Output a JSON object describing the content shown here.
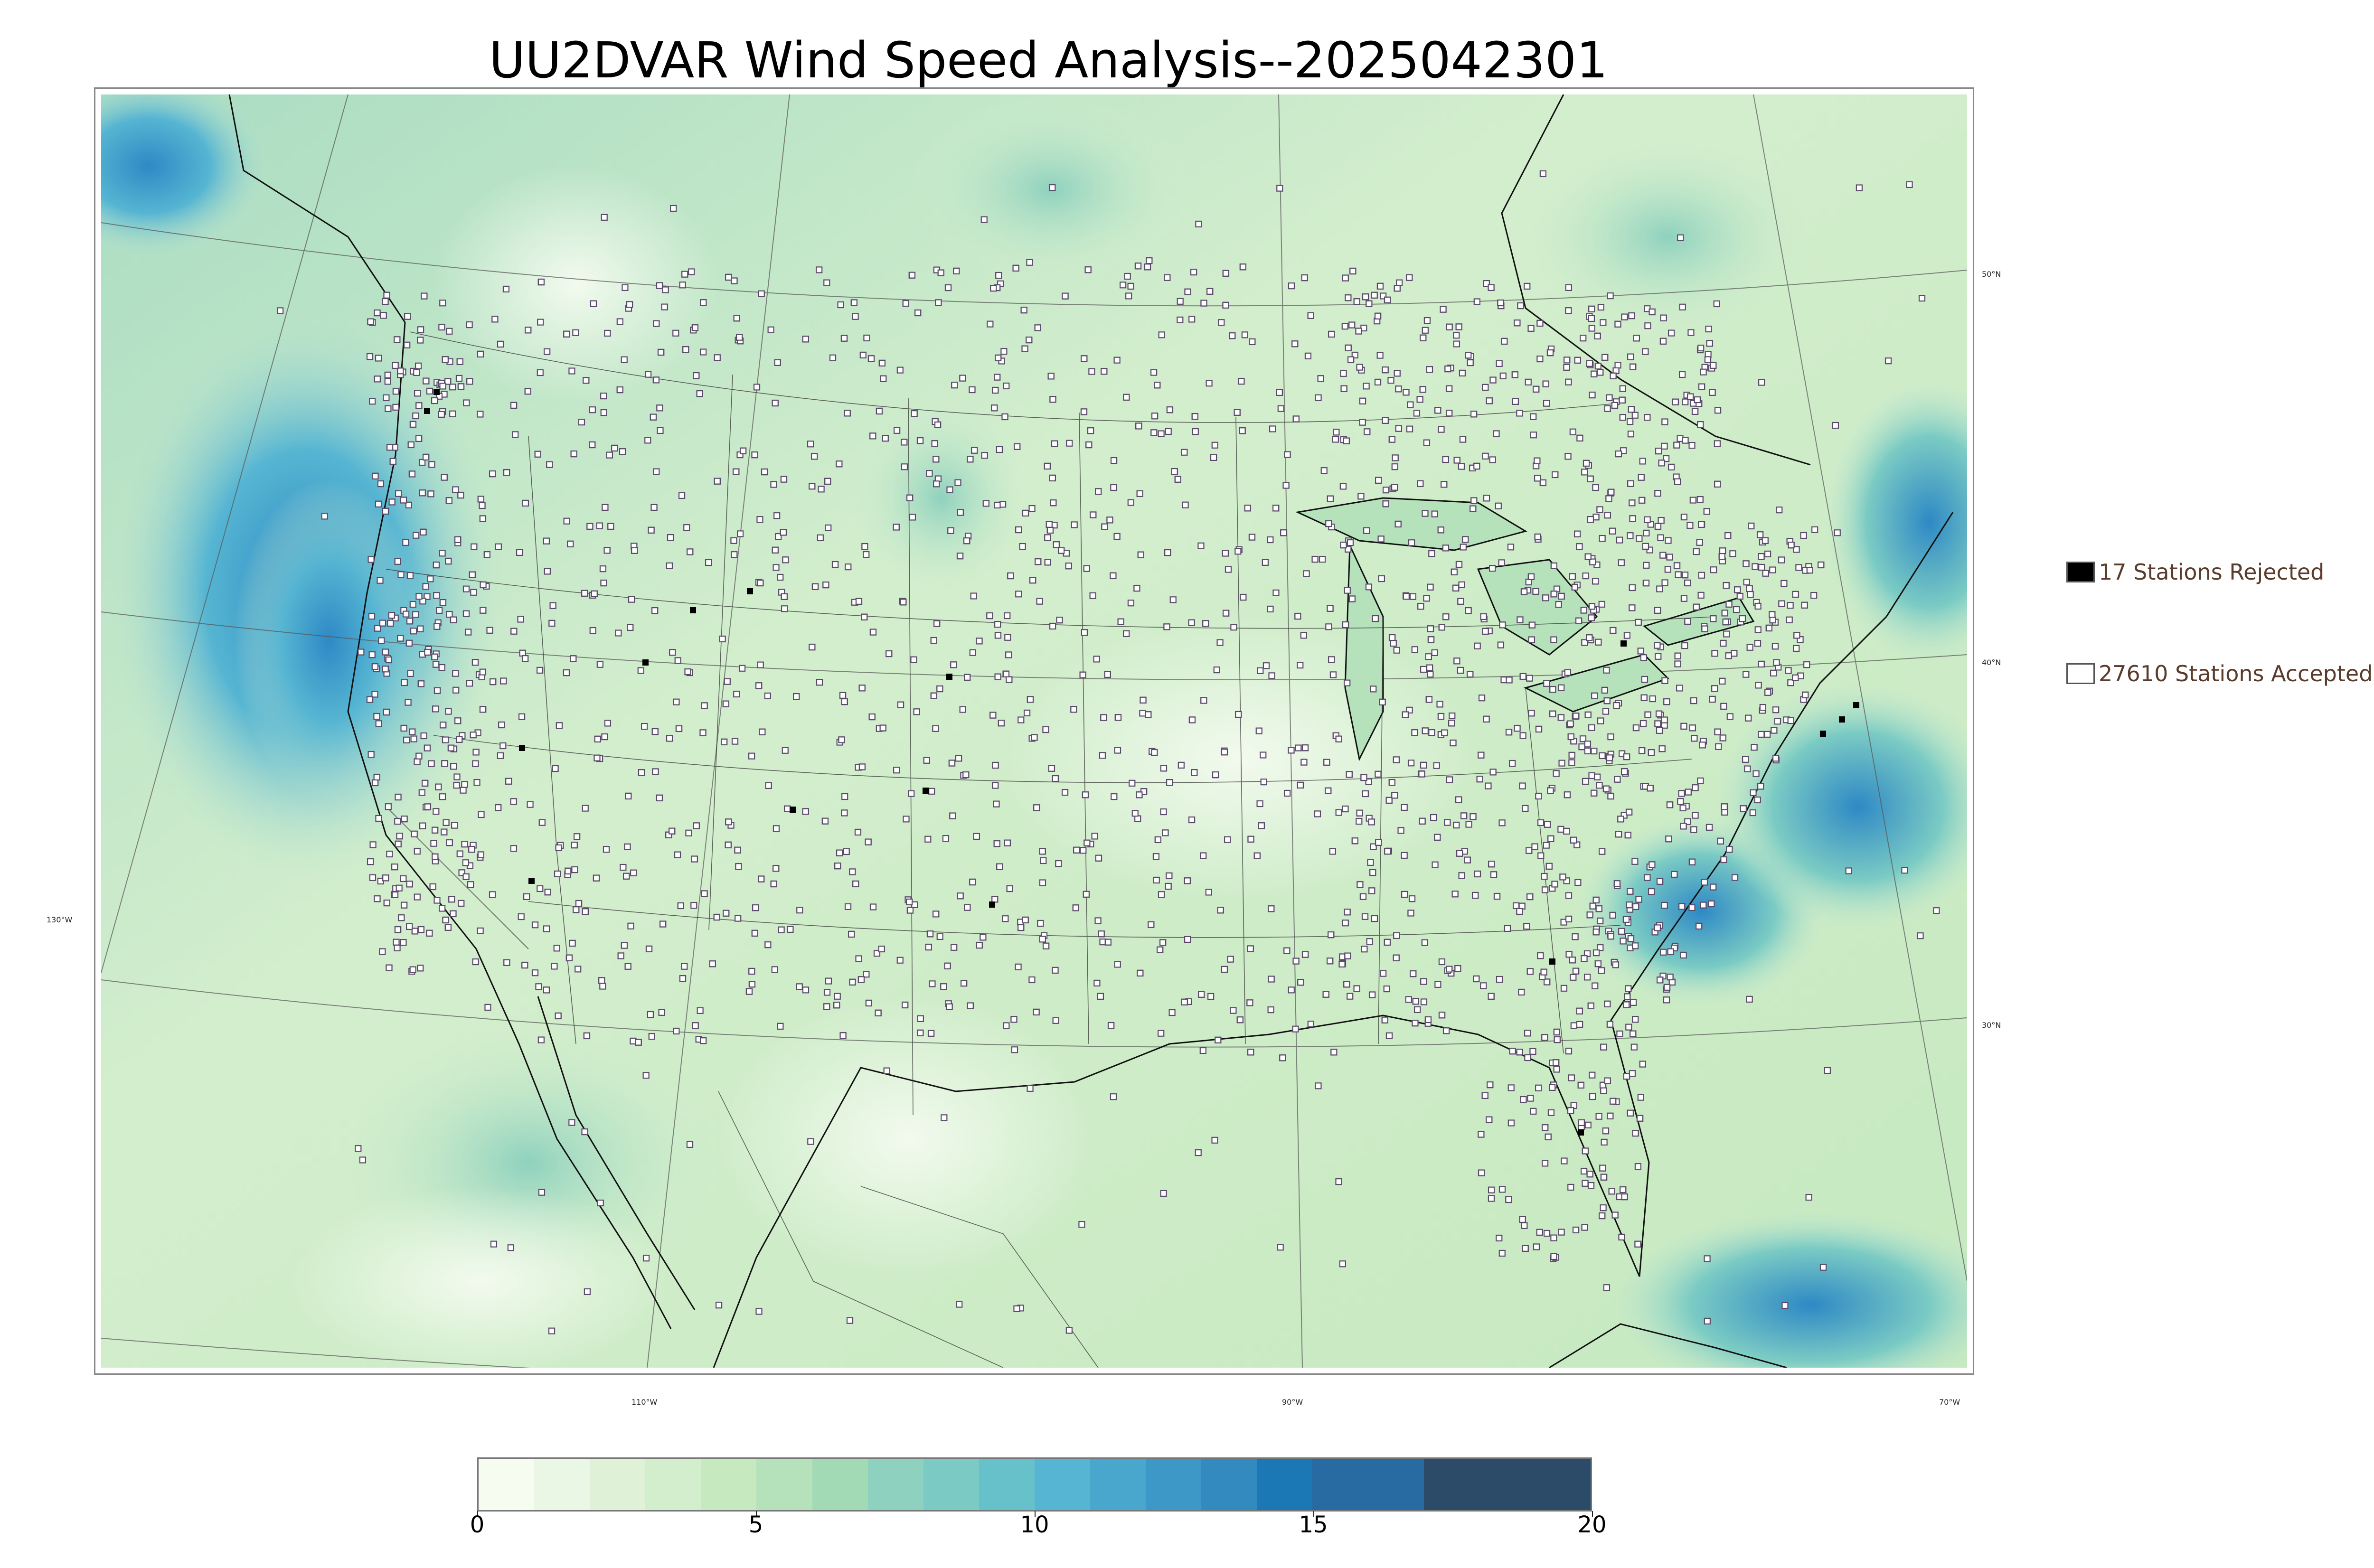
{
  "title": "UU2DVAR Wind Speed Analysis--2025042301",
  "map": {
    "projection": "lambert-conformal",
    "lat_labels": [
      "50°N",
      "40°N",
      "30°N"
    ],
    "lon_labels": [
      "130°W",
      "110°W",
      "90°W",
      "70°W"
    ],
    "colors": {
      "land_base": "#d6f0cf",
      "ocean_base": "#bfe6cf",
      "strong_wind": "#3f9fd6",
      "coast_line": "#111111",
      "station_fill": "#ffffff",
      "station_edge": "#5a4a6a"
    }
  },
  "legend": {
    "rejected": {
      "label": "17 Stations Rejected",
      "color": "#000000"
    },
    "accepted": {
      "label": "27610 Stations Accepted",
      "color": "#ffffff"
    }
  },
  "colorbar": {
    "ticks": [
      "0",
      "5",
      "10",
      "15",
      "20"
    ],
    "min": 0,
    "max": 20,
    "colors": [
      "#f7fcf0",
      "#eaf7e4",
      "#dff2d8",
      "#d3eecd",
      "#c6e9c0",
      "#b5e2ba",
      "#a3dab6",
      "#8ed1be",
      "#7bcbc4",
      "#67c1ca",
      "#56b5d2",
      "#49a7cd",
      "#3d98c7",
      "#338abf",
      "#1c77b5",
      "#286aa2",
      "#2b4b68"
    ],
    "bounds": [
      0,
      1,
      2,
      3,
      4,
      5,
      6,
      7,
      8,
      9,
      10,
      11,
      12,
      13,
      14,
      15,
      17,
      20
    ]
  }
}
